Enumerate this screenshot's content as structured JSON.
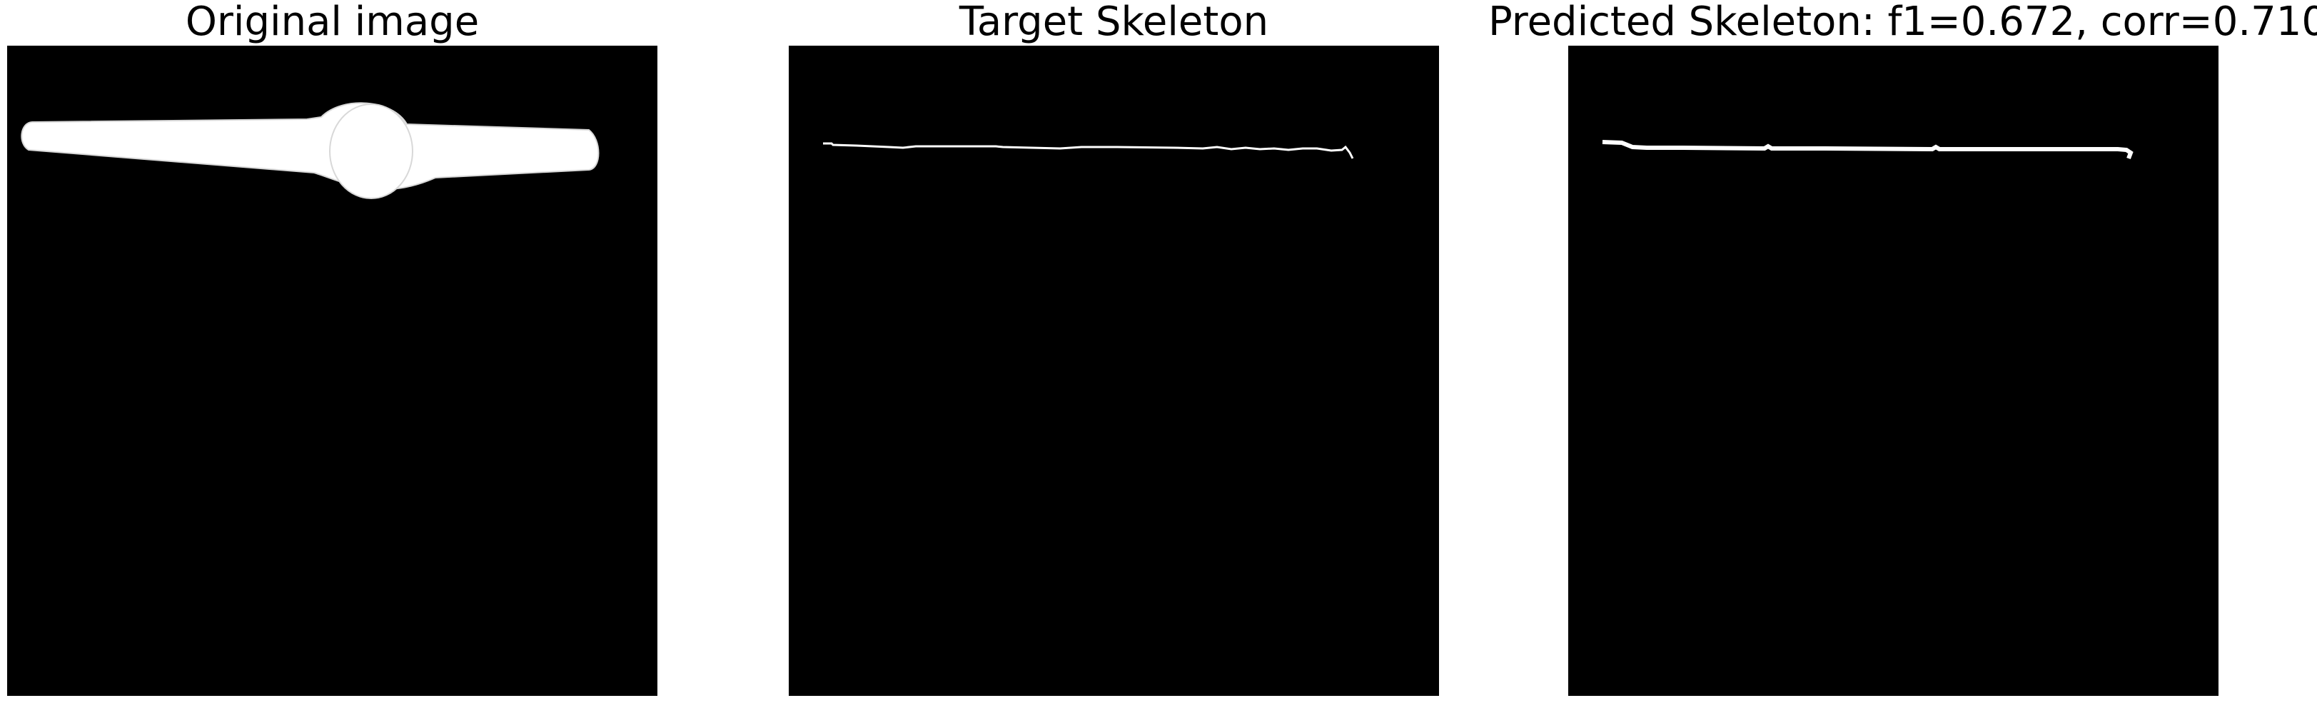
{
  "figure": {
    "panels": [
      {
        "id": "original",
        "title": "Original image"
      },
      {
        "id": "target",
        "title": "Target Skeleton"
      },
      {
        "id": "predicted",
        "title": "Predicted Skeleton: f1=0.672, corr=0.710"
      }
    ],
    "colors": {
      "background": "#000000",
      "foreground": "#ffffff",
      "page": "#ffffff"
    }
  }
}
